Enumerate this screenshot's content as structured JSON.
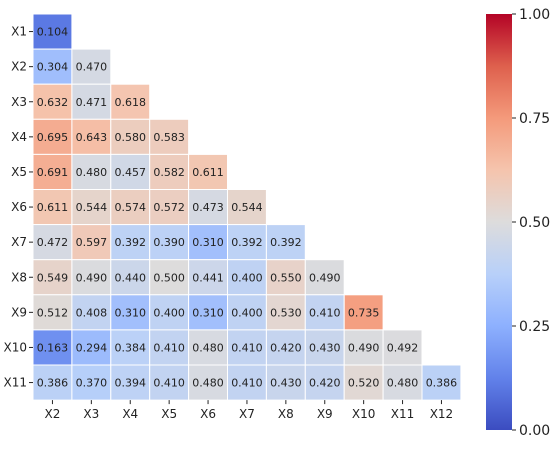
{
  "chart_data": {
    "type": "heatmap",
    "title": "",
    "xlabel": "",
    "ylabel": "",
    "x_categories": [
      "X2",
      "X3",
      "X4",
      "X5",
      "X6",
      "X7",
      "X8",
      "X9",
      "X10",
      "X11",
      "X12"
    ],
    "y_categories": [
      "X1",
      "X2",
      "X3",
      "X4",
      "X5",
      "X6",
      "X7",
      "X8",
      "X9",
      "X10",
      "X11"
    ],
    "values": [
      [
        0.104
      ],
      [
        0.304,
        0.47
      ],
      [
        0.632,
        0.471,
        0.618
      ],
      [
        0.695,
        0.643,
        0.58,
        0.583
      ],
      [
        0.691,
        0.48,
        0.457,
        0.582,
        0.611
      ],
      [
        0.611,
        0.544,
        0.574,
        0.572,
        0.473,
        0.544
      ],
      [
        0.472,
        0.597,
        0.392,
        0.39,
        0.31,
        0.392,
        0.392
      ],
      [
        0.549,
        0.49,
        0.44,
        0.5,
        0.441,
        0.4,
        0.55,
        0.49
      ],
      [
        0.512,
        0.408,
        0.31,
        0.4,
        0.31,
        0.4,
        0.53,
        0.41,
        0.735
      ],
      [
        0.163,
        0.294,
        0.384,
        0.41,
        0.48,
        0.41,
        0.42,
        0.43,
        0.49,
        0.492
      ],
      [
        0.386,
        0.37,
        0.394,
        0.41,
        0.48,
        0.41,
        0.43,
        0.42,
        0.52,
        0.48,
        0.386
      ]
    ],
    "value_format": "0.000",
    "colormap": "coolwarm",
    "vmin": 0.0,
    "vmax": 1.0,
    "colorbar": {
      "ticks": [
        "0.00",
        "0.25",
        "0.50",
        "0.75",
        "1.00"
      ],
      "tick_values": [
        0.0,
        0.25,
        0.5,
        0.75,
        1.0
      ],
      "placement": "right"
    },
    "grid": true,
    "cell_border_color": "#ffffff"
  }
}
